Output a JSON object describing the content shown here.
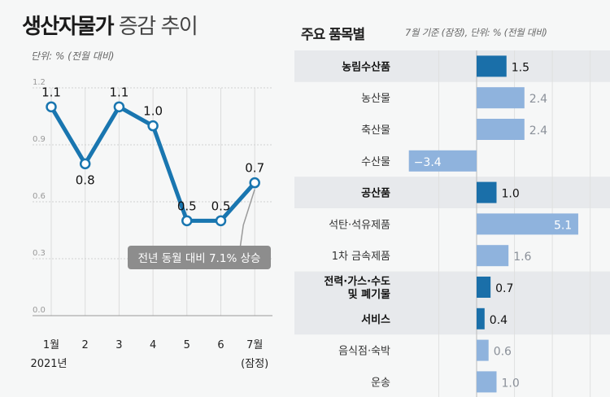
{
  "left": {
    "title_bold": "생산자물가",
    "title_rest": "증감 추이",
    "unit": "단위: % (전월 대비)",
    "annotation": "전년 동월 대비 7.1% 상승"
  },
  "right": {
    "title": "주요 품목별",
    "unit": "7월 기준 (잠정), 단위: % (전월 대비)"
  },
  "colors": {
    "line": "#1976b0",
    "bar_major": "#1a6fa9",
    "bar_minor": "#8fb3dd",
    "band": "#e7e9ec",
    "annotation_bg": "#8d8d8d"
  },
  "chart_data": [
    {
      "type": "line",
      "title": "생산자물가 증감 추이",
      "ylabel": "단위: % (전월 대비)",
      "categories": [
        "1월",
        "2",
        "3",
        "4",
        "5",
        "6",
        "7월"
      ],
      "category_sublabels": [
        "2021년",
        "",
        "",
        "",
        "",
        "",
        "(잠정)"
      ],
      "values": [
        1.1,
        0.8,
        1.1,
        1.0,
        0.5,
        0.5,
        0.7
      ],
      "value_labels": [
        "1.1",
        "0.8",
        "1.1",
        "1.0",
        "0.5",
        "0.5",
        "0.7"
      ],
      "yticks": [
        "0.0",
        "0.3",
        "0.6",
        "0.9",
        "1.2"
      ],
      "ylim": [
        0,
        1.2
      ],
      "grid": true
    },
    {
      "type": "bar",
      "orientation": "horizontal",
      "title": "주요 품목별",
      "unit": "7월 기준 (잠정), 단위: % (전월 대비)",
      "categories": [
        "농림수산품",
        "농산물",
        "축산물",
        "수산물",
        "공산품",
        "석탄·석유제품",
        "1차 금속제품",
        "전력·가스·수도|및 폐기물",
        "서비스",
        "음식점·숙박",
        "운송"
      ],
      "values": [
        1.5,
        2.4,
        2.4,
        -3.4,
        1.0,
        5.1,
        1.6,
        0.7,
        0.4,
        0.6,
        1.0
      ],
      "value_labels": [
        "1.5",
        "2.4",
        "2.4",
        "−3.4",
        "1.0",
        "5.1",
        "1.6",
        "0.7",
        "0.4",
        "0.6",
        "1.0"
      ],
      "major": [
        true,
        false,
        false,
        false,
        true,
        false,
        false,
        true,
        true,
        false,
        false
      ],
      "xlim": [
        -3.4,
        5.1
      ]
    }
  ]
}
